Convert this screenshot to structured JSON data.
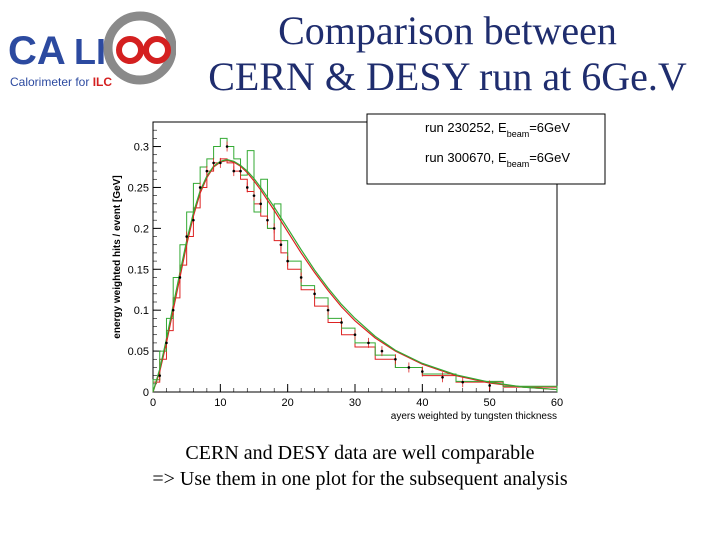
{
  "logo": {
    "text_ca": "CA",
    "text_li": "LI",
    "subtitle_main": "Calorimeter for ",
    "subtitle_accent": "ILC"
  },
  "title": {
    "line1": "Comparison between",
    "line2": "CERN & DESY run at 6Ge.V"
  },
  "caption": {
    "line1": "CERN and DESY data are well comparable",
    "line2": "=> Use them in one plot for the subsequent analysis"
  },
  "colors": {
    "title": "#1f2d6e",
    "logo_blue": "#2c4aa0",
    "logo_red": "#d42020",
    "logo_gray": "#8a8a8a",
    "cern": "#dd2222",
    "desy": "#33aa33"
  },
  "chart_data": {
    "type": "line",
    "title": "",
    "xlabel": "ayers weighted by tungsten thickness",
    "ylabel": "energy weighted hits / event [GeV]",
    "xlim": [
      0,
      60
    ],
    "ylim": [
      0,
      0.33
    ],
    "xticks": [
      0,
      10,
      20,
      30,
      40,
      50,
      60
    ],
    "xtick_labels": [
      "0",
      "10",
      "20",
      "30",
      "40",
      "50",
      "60"
    ],
    "yticks": [
      0,
      0.05,
      0.1,
      0.15,
      0.2,
      0.25,
      0.3
    ],
    "ytick_labels": [
      "0",
      "0.05",
      "0.1",
      "0.15",
      "0.2",
      "0.25",
      "0.3"
    ],
    "legend": {
      "position": "top-right",
      "entries": [
        {
          "text": "run 230252, E",
          "sub": "beam",
          "tail": "=6GeV"
        },
        {
          "text": "run 300670, E",
          "sub": "beam",
          "tail": "=6GeV"
        }
      ]
    },
    "series": [
      {
        "name": "run 230252 (CERN)",
        "color": "#dd2222",
        "bin_edges": [
          0,
          1,
          2,
          3,
          4,
          5,
          6,
          7,
          8,
          9,
          10,
          11,
          12,
          13,
          14,
          15,
          16,
          17,
          18,
          19,
          20,
          22,
          24,
          26,
          28,
          30,
          33,
          36,
          40,
          45,
          52,
          60
        ],
        "values": [
          0.012,
          0.04,
          0.075,
          0.115,
          0.155,
          0.19,
          0.225,
          0.25,
          0.27,
          0.28,
          0.285,
          0.28,
          0.27,
          0.26,
          0.245,
          0.23,
          0.215,
          0.2,
          0.185,
          0.17,
          0.15,
          0.125,
          0.105,
          0.085,
          0.07,
          0.055,
          0.04,
          0.03,
          0.02,
          0.012,
          0.006
        ],
        "fit": [
          [
            0,
            0
          ],
          [
            1,
            0.025
          ],
          [
            2,
            0.06
          ],
          [
            3,
            0.1
          ],
          [
            4,
            0.14
          ],
          [
            5,
            0.18
          ],
          [
            6,
            0.215
          ],
          [
            7,
            0.243
          ],
          [
            8,
            0.262
          ],
          [
            9,
            0.275
          ],
          [
            10,
            0.281
          ],
          [
            11,
            0.283
          ],
          [
            12,
            0.281
          ],
          [
            13,
            0.276
          ],
          [
            14,
            0.268
          ],
          [
            15,
            0.258
          ],
          [
            16,
            0.247
          ],
          [
            18,
            0.222
          ],
          [
            20,
            0.196
          ],
          [
            22,
            0.17
          ],
          [
            24,
            0.146
          ],
          [
            26,
            0.124
          ],
          [
            28,
            0.104
          ],
          [
            30,
            0.087
          ],
          [
            33,
            0.066
          ],
          [
            36,
            0.05
          ],
          [
            40,
            0.034
          ],
          [
            45,
            0.02
          ],
          [
            50,
            0.011
          ],
          [
            55,
            0.006
          ],
          [
            60,
            0.003
          ]
        ]
      },
      {
        "name": "run 300670 (DESY)",
        "color": "#33aa33",
        "bin_edges": [
          0,
          1,
          2,
          3,
          4,
          5,
          6,
          7,
          8,
          9,
          10,
          11,
          12,
          13,
          14,
          15,
          16,
          17,
          18,
          19,
          20,
          22,
          24,
          26,
          28,
          30,
          33,
          36,
          40,
          45,
          52,
          60
        ],
        "values": [
          0.015,
          0.05,
          0.09,
          0.14,
          0.18,
          0.22,
          0.255,
          0.275,
          0.285,
          0.3,
          0.31,
          0.3,
          0.285,
          0.265,
          0.295,
          0.22,
          0.26,
          0.2,
          0.23,
          0.185,
          0.16,
          0.13,
          0.115,
          0.09,
          0.078,
          0.06,
          0.045,
          0.03,
          0.022,
          0.013,
          0.007
        ],
        "fit": [
          [
            0,
            0
          ],
          [
            1,
            0.028
          ],
          [
            2,
            0.065
          ],
          [
            3,
            0.106
          ],
          [
            4,
            0.146
          ],
          [
            5,
            0.185
          ],
          [
            6,
            0.219
          ],
          [
            7,
            0.246
          ],
          [
            8,
            0.264
          ],
          [
            9,
            0.276
          ],
          [
            10,
            0.282
          ],
          [
            11,
            0.284
          ],
          [
            12,
            0.282
          ],
          [
            13,
            0.277
          ],
          [
            14,
            0.27
          ],
          [
            15,
            0.261
          ],
          [
            16,
            0.25
          ],
          [
            18,
            0.226
          ],
          [
            20,
            0.2
          ],
          [
            22,
            0.174
          ],
          [
            24,
            0.149
          ],
          [
            26,
            0.127
          ],
          [
            28,
            0.107
          ],
          [
            30,
            0.09
          ],
          [
            33,
            0.068
          ],
          [
            36,
            0.051
          ],
          [
            40,
            0.035
          ],
          [
            45,
            0.021
          ],
          [
            50,
            0.012
          ],
          [
            55,
            0.006
          ],
          [
            60,
            0.003
          ]
        ]
      },
      {
        "name": "data points",
        "color": "#000000",
        "x": [
          1,
          2,
          3,
          4,
          5,
          6,
          7,
          8,
          9,
          10,
          11,
          12,
          13,
          14,
          15,
          16,
          17,
          18,
          19,
          20,
          22,
          24,
          26,
          28,
          30,
          32,
          34,
          36,
          38,
          40,
          43,
          46,
          50
        ],
        "y": [
          0.02,
          0.06,
          0.1,
          0.14,
          0.19,
          0.21,
          0.25,
          0.27,
          0.28,
          0.28,
          0.3,
          0.27,
          0.27,
          0.25,
          0.24,
          0.23,
          0.21,
          0.2,
          0.18,
          0.16,
          0.14,
          0.12,
          0.1,
          0.085,
          0.07,
          0.06,
          0.05,
          0.04,
          0.03,
          0.025,
          0.018,
          0.012,
          0.008
        ]
      }
    ]
  }
}
